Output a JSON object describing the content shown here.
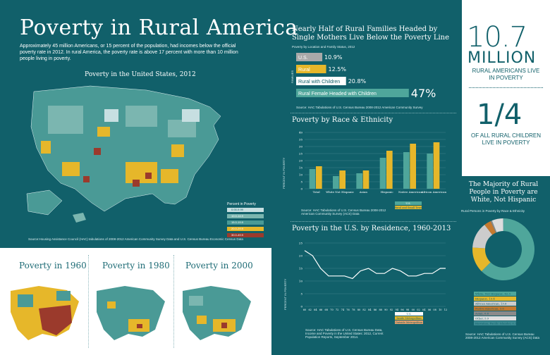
{
  "header": {
    "title": "Poverty in Rural America",
    "intro": "Approximately 45 million Americans, or 15 percent of the population, had incomes below the official poverty rate in 2012. In rural America, the poverty rate is above 17 percent with more than 10 million people living in poverty."
  },
  "map": {
    "title": "Poverty in the United States, 2012",
    "source": "Source:Housing Assistance Council (HAC) tabulations of 2008-2012 American Community Survey Data and U.S. Census Bureau Economic Census Data",
    "legend_title": "Percent in Poverty",
    "legend": [
      {
        "label": "0.00-9.99",
        "color": "#c7dfe1"
      },
      {
        "label": "10.0-14.9",
        "color": "#7bb6b0"
      },
      {
        "label": "15.0-19.9",
        "color": "#4a9a96"
      },
      {
        "label": "20.0-29.9",
        "color": "#e6b72a"
      },
      {
        "label": "30.0-49.9",
        "color": "#9b3a2c"
      }
    ]
  },
  "eras": [
    "Poverty in 1960",
    "Poverty in 1980",
    "Poverty in 2000"
  ],
  "single_mothers": {
    "title": "Nearly Half of Rural Families Headed by Single Mothers Live Below the Poverty Line",
    "subtitle": "Poverty by Location and Family Status, 2012",
    "axis_label": "FAMILIES",
    "source": "Source: HAC Tabulations of U.S. Census Bureau 2008-2012 American Community Survey"
  },
  "race": {
    "title": "Poverty by Race & Ethnicity",
    "ylabel": "PERCENT IN POVERTY",
    "source": "Source: HAC Tabulations of U.S. Census Bureau 2008-2012 American Community Survey (ACS) Data"
  },
  "residence": {
    "title": "Poverty in the U.S. by Residence, 1960-2013",
    "ylabel": "PERCENT IN POVERTY",
    "source": "Source: HAC Tabulations of U.S. Census Bureau Data, Income and Poverty in the United States: 2012, Current Population Reports, September 2014."
  },
  "stats": {
    "big1": "10.7",
    "big1_unit": "MILLION",
    "big1_caption": "RURAL AMERICANS LIVE IN POVERTY",
    "big2": "1/4",
    "big2_caption": "OF ALL RURAL CHILDREN LIVE IN POVERTY"
  },
  "donut": {
    "title": "The Majority of Rural People in Poverty are White, Not Hispanic",
    "subtitle": "Rural Persons in Poverty by Race & Ethnicity",
    "source": "Source: HAC Tabulations of U.S. Census Bureau 2008-2012 American Community Survey (ACS) Data"
  },
  "chart_data": [
    {
      "type": "bar",
      "orientation": "horizontal",
      "title": "Nearly Half of Rural Families Headed by Single Mothers Live Below the Poverty Line",
      "categories": [
        "U.S.",
        "Rural",
        "Rural with Children",
        "Rural Female Headed with Children"
      ],
      "values": [
        10.9,
        12.5,
        20.8,
        47
      ],
      "labels": [
        "10.9%",
        "12.5%",
        "20.8%",
        "47%"
      ],
      "colors": [
        "#a9a9a9",
        "#e6b72a",
        "#ffffff",
        "#4fa69b"
      ]
    },
    {
      "type": "bar",
      "title": "Poverty by Race & Ethnicity",
      "ylabel": "PERCENT IN POVERTY",
      "ylim": [
        0,
        40
      ],
      "yticks": [
        0,
        5,
        10,
        15,
        20,
        25,
        30,
        35,
        40
      ],
      "categories": [
        "Total",
        "White Not Hispanic",
        "Asian",
        "Hispanic",
        "Native American",
        "African American"
      ],
      "series": [
        {
          "name": "U.S.",
          "color": "#4fa69b",
          "values": [
            14,
            9,
            11,
            22,
            26,
            25
          ]
        },
        {
          "name": "Rural and Small Town",
          "color": "#e6b72a",
          "values": [
            16,
            13,
            13,
            27,
            32,
            33
          ]
        }
      ]
    },
    {
      "type": "line",
      "title": "Poverty in the U.S. by Residence, 1960-2013",
      "ylabel": "PERCENT IN POVERTY",
      "ylim": [
        0,
        25
      ],
      "yticks": [
        0,
        5,
        10,
        15,
        20,
        25
      ],
      "xticks": [
        "60",
        "62",
        "64",
        "66",
        "68",
        "70",
        "72",
        "74",
        "76",
        "78",
        "80",
        "82",
        "84",
        "86",
        "88",
        "90",
        "92",
        "94",
        "96",
        "98",
        "00",
        "02",
        "04",
        "06",
        "08",
        "10",
        "12"
      ],
      "x": [
        1960,
        1963,
        1966,
        1969,
        1972,
        1975,
        1978,
        1981,
        1984,
        1987,
        1990,
        1993,
        1996,
        1999,
        2002,
        2005,
        2008,
        2011,
        2013
      ],
      "series": [
        {
          "name": "U.S.",
          "color": "#ffffff",
          "values": [
            22,
            20,
            15,
            12,
            12,
            12,
            11,
            14,
            15,
            13,
            13,
            15,
            14,
            12,
            12,
            13,
            13,
            15,
            15
          ]
        },
        {
          "name": "Inside Metropolitan",
          "color": "#e6b72a",
          "values": [
            null,
            null,
            null,
            null,
            null,
            null,
            null,
            null,
            null,
            null,
            null,
            null,
            null,
            null,
            null,
            null,
            null,
            null,
            null
          ]
        },
        {
          "name": "Outside Metropolitan",
          "color": "#e8a06a",
          "values": [
            null,
            null,
            null,
            null,
            null,
            null,
            null,
            null,
            null,
            null,
            null,
            null,
            null,
            null,
            null,
            null,
            null,
            null,
            null
          ]
        }
      ]
    },
    {
      "type": "pie",
      "title": "The Majority of Rural People in Poverty are White, Not Hispanic",
      "categories": [
        "White, Not Hispanic",
        "Hispanic",
        "African American",
        "Native American",
        "Asian",
        "Other",
        "Hawaiian, Pacific Islander"
      ],
      "values": [
        62.3,
        13.4,
        13.6,
        3.6,
        0.8,
        5.9,
        0.1
      ],
      "labels": [
        "62.3",
        "13.4",
        "13.6",
        "3.6",
        "0.8",
        "5.9",
        "0.1"
      ],
      "colors": [
        "#4fa69b",
        "#e6b72a",
        "#cccccc",
        "#c57a2f",
        "#8a8a8a",
        "#dddddd",
        "#3d8b93"
      ]
    }
  ]
}
